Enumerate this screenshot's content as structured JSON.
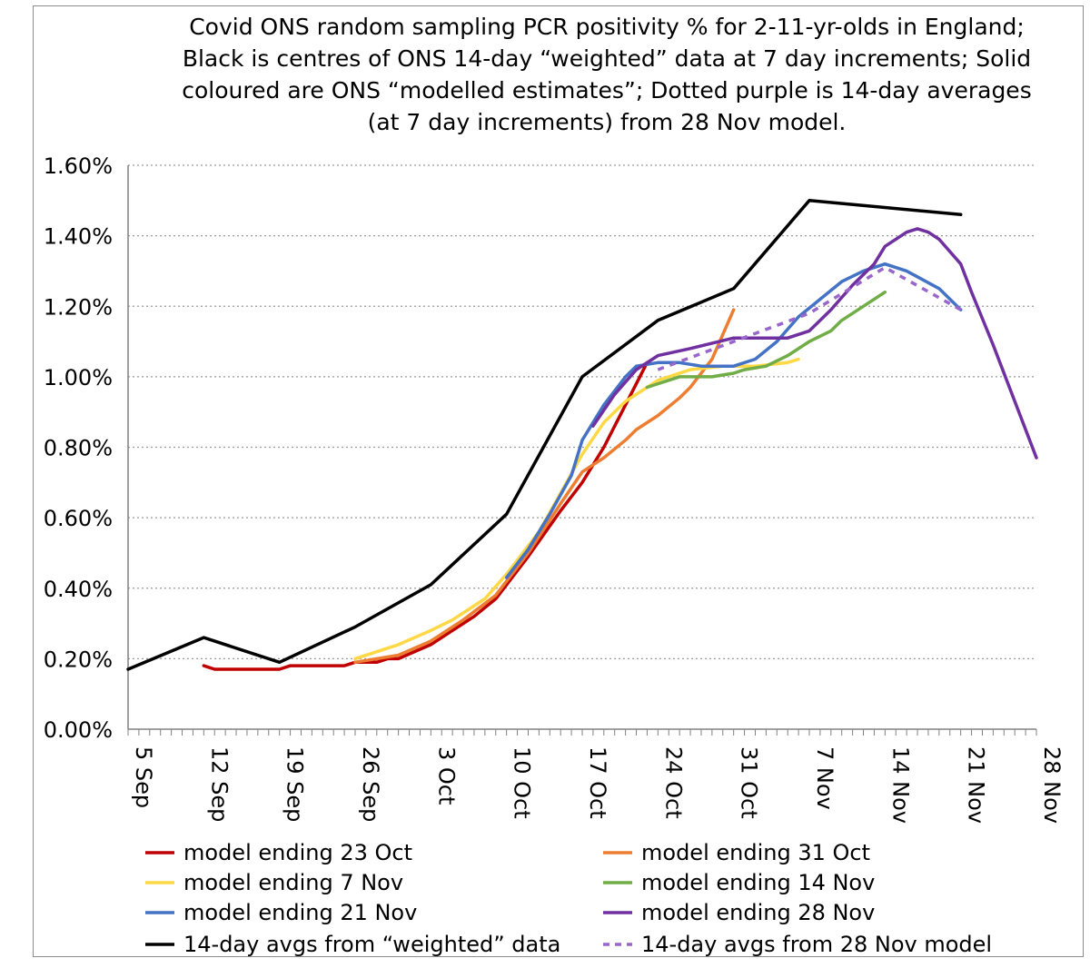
{
  "chart_data": {
    "type": "line",
    "title": [
      "Covid ONS random sampling PCR positivity % for 2-11-yr-olds in England;",
      "Black is centres of ONS 14-day “weighted” data at 7 day increments; Solid",
      "coloured are ONS “modelled estimates”; Dotted purple is 14-day averages",
      "(at 7 day increments) from 28 Nov model."
    ],
    "xlabel": "",
    "ylabel": "",
    "x_ticks": [
      "5 Sep",
      "12 Sep",
      "19 Sep",
      "26 Sep",
      "3 Oct",
      "10 Oct",
      "17 Oct",
      "24 Oct",
      "31 Oct",
      "7 Nov",
      "14 Nov",
      "21 Nov",
      "28 Nov"
    ],
    "x_range": [
      "5 Sep",
      "28 Nov"
    ],
    "y_ticks": [
      "0.00%",
      "0.20%",
      "0.40%",
      "0.60%",
      "0.80%",
      "1.00%",
      "1.20%",
      "1.40%",
      "1.60%"
    ],
    "ylim": [
      0,
      1.6
    ],
    "y_unit": "%",
    "grid": "horizontal dotted",
    "legend_position": "bottom",
    "series": [
      {
        "name": "model ending 23 Oct",
        "color": "#c00000",
        "dash": "solid",
        "points": [
          [
            "12 Sep",
            0.18
          ],
          [
            "13 Sep",
            0.17
          ],
          [
            "19 Sep",
            0.17
          ],
          [
            "20 Sep",
            0.18
          ],
          [
            "25 Sep",
            0.18
          ],
          [
            "26 Sep",
            0.19
          ],
          [
            "28 Sep",
            0.19
          ],
          [
            "29 Sep",
            0.2
          ],
          [
            "30 Sep",
            0.2
          ],
          [
            "3 Oct",
            0.24
          ],
          [
            "5 Oct",
            0.28
          ],
          [
            "7 Oct",
            0.32
          ],
          [
            "9 Oct",
            0.37
          ],
          [
            "10 Oct",
            0.41
          ],
          [
            "12 Oct",
            0.49
          ],
          [
            "15 Oct",
            0.62
          ],
          [
            "17 Oct",
            0.7
          ],
          [
            "19 Oct",
            0.8
          ],
          [
            "21 Oct",
            0.92
          ],
          [
            "23 Oct",
            1.04
          ]
        ]
      },
      {
        "name": "model ending 31 Oct",
        "color": "#ed7d31",
        "dash": "solid",
        "points": [
          [
            "26 Sep",
            0.19
          ],
          [
            "30 Sep",
            0.21
          ],
          [
            "3 Oct",
            0.25
          ],
          [
            "6 Oct",
            0.31
          ],
          [
            "9 Oct",
            0.38
          ],
          [
            "12 Oct",
            0.5
          ],
          [
            "15 Oct",
            0.64
          ],
          [
            "17 Oct",
            0.73
          ],
          [
            "19 Oct",
            0.77
          ],
          [
            "21 Oct",
            0.82
          ],
          [
            "22 Oct",
            0.85
          ],
          [
            "24 Oct",
            0.89
          ],
          [
            "26 Oct",
            0.94
          ],
          [
            "27 Oct",
            0.97
          ],
          [
            "29 Oct",
            1.05
          ],
          [
            "31 Oct",
            1.19
          ]
        ]
      },
      {
        "name": "model ending 7 Nov",
        "color": "#ffd845",
        "dash": "solid",
        "points": [
          [
            "26 Sep",
            0.2
          ],
          [
            "30 Sep",
            0.24
          ],
          [
            "3 Oct",
            0.28
          ],
          [
            "5 Oct",
            0.31
          ],
          [
            "8 Oct",
            0.37
          ],
          [
            "10 Oct",
            0.44
          ],
          [
            "13 Oct",
            0.56
          ],
          [
            "15 Oct",
            0.67
          ],
          [
            "17 Oct",
            0.78
          ],
          [
            "19 Oct",
            0.87
          ],
          [
            "21 Oct",
            0.93
          ],
          [
            "24 Oct",
            0.99
          ],
          [
            "27 Oct",
            1.02
          ],
          [
            "30 Oct",
            1.03
          ],
          [
            "2 Nov",
            1.03
          ],
          [
            "5 Nov",
            1.04
          ],
          [
            "6 Nov",
            1.05
          ]
        ]
      },
      {
        "name": "model ending 14 Nov",
        "color": "#70ad47",
        "dash": "solid",
        "points": [
          [
            "23 Oct",
            0.97
          ],
          [
            "26 Oct",
            1.0
          ],
          [
            "29 Oct",
            1.0
          ],
          [
            "31 Oct",
            1.01
          ],
          [
            "1 Nov",
            1.02
          ],
          [
            "3 Nov",
            1.03
          ],
          [
            "5 Nov",
            1.06
          ],
          [
            "7 Nov",
            1.1
          ],
          [
            "9 Nov",
            1.13
          ],
          [
            "10 Nov",
            1.16
          ],
          [
            "12 Nov",
            1.2
          ],
          [
            "14 Nov",
            1.24
          ]
        ]
      },
      {
        "name": "model ending 21 Nov",
        "color": "#4472c4",
        "dash": "solid",
        "points": [
          [
            "10 Oct",
            0.43
          ],
          [
            "12 Oct",
            0.51
          ],
          [
            "14 Oct",
            0.61
          ],
          [
            "16 Oct",
            0.72
          ],
          [
            "17 Oct",
            0.82
          ],
          [
            "18 Oct",
            0.87
          ],
          [
            "19 Oct",
            0.92
          ],
          [
            "21 Oct",
            1.0
          ],
          [
            "22 Oct",
            1.03
          ],
          [
            "24 Oct",
            1.04
          ],
          [
            "26 Oct",
            1.04
          ],
          [
            "28 Oct",
            1.03
          ],
          [
            "31 Oct",
            1.03
          ],
          [
            "2 Nov",
            1.05
          ],
          [
            "4 Nov",
            1.1
          ],
          [
            "6 Nov",
            1.17
          ],
          [
            "8 Nov",
            1.22
          ],
          [
            "10 Nov",
            1.27
          ],
          [
            "12 Nov",
            1.3
          ],
          [
            "14 Nov",
            1.32
          ],
          [
            "16 Nov",
            1.3
          ],
          [
            "19 Nov",
            1.25
          ],
          [
            "21 Nov",
            1.19
          ]
        ]
      },
      {
        "name": "model ending 28 Nov",
        "color": "#7030a0",
        "dash": "solid",
        "points": [
          [
            "18 Oct",
            0.86
          ],
          [
            "20 Oct",
            0.95
          ],
          [
            "22 Oct",
            1.02
          ],
          [
            "24 Oct",
            1.06
          ],
          [
            "27 Oct",
            1.08
          ],
          [
            "31 Oct",
            1.11
          ],
          [
            "3 Nov",
            1.11
          ],
          [
            "5 Nov",
            1.11
          ],
          [
            "7 Nov",
            1.13
          ],
          [
            "9 Nov",
            1.19
          ],
          [
            "11 Nov",
            1.26
          ],
          [
            "13 Nov",
            1.32
          ],
          [
            "14 Nov",
            1.37
          ],
          [
            "16 Nov",
            1.41
          ],
          [
            "17 Nov",
            1.42
          ],
          [
            "18 Nov",
            1.41
          ],
          [
            "19 Nov",
            1.39
          ],
          [
            "21 Nov",
            1.32
          ],
          [
            "22 Nov",
            1.24
          ],
          [
            "24 Nov",
            1.09
          ],
          [
            "26 Nov",
            0.93
          ],
          [
            "28 Nov",
            0.77
          ]
        ]
      },
      {
        "name": "14-day avgs from “weighted” data",
        "color": "#000000",
        "dash": "solid",
        "points": [
          [
            "5 Sep",
            0.17
          ],
          [
            "12 Sep",
            0.26
          ],
          [
            "19 Sep",
            0.19
          ],
          [
            "26 Sep",
            0.29
          ],
          [
            "3 Oct",
            0.41
          ],
          [
            "10 Oct",
            0.61
          ],
          [
            "17 Oct",
            1.0
          ],
          [
            "24 Oct",
            1.16
          ],
          [
            "31 Oct",
            1.25
          ],
          [
            "7 Nov",
            1.5
          ],
          [
            "21 Nov",
            1.46
          ]
        ]
      },
      {
        "name": "14-day avgs from 28 Nov model",
        "color": "#9966cc",
        "dash": "dashed",
        "points": [
          [
            "24 Oct",
            1.02
          ],
          [
            "31 Oct",
            1.1
          ],
          [
            "7 Nov",
            1.18
          ],
          [
            "14 Nov",
            1.31
          ],
          [
            "21 Nov",
            1.19
          ]
        ]
      }
    ]
  }
}
